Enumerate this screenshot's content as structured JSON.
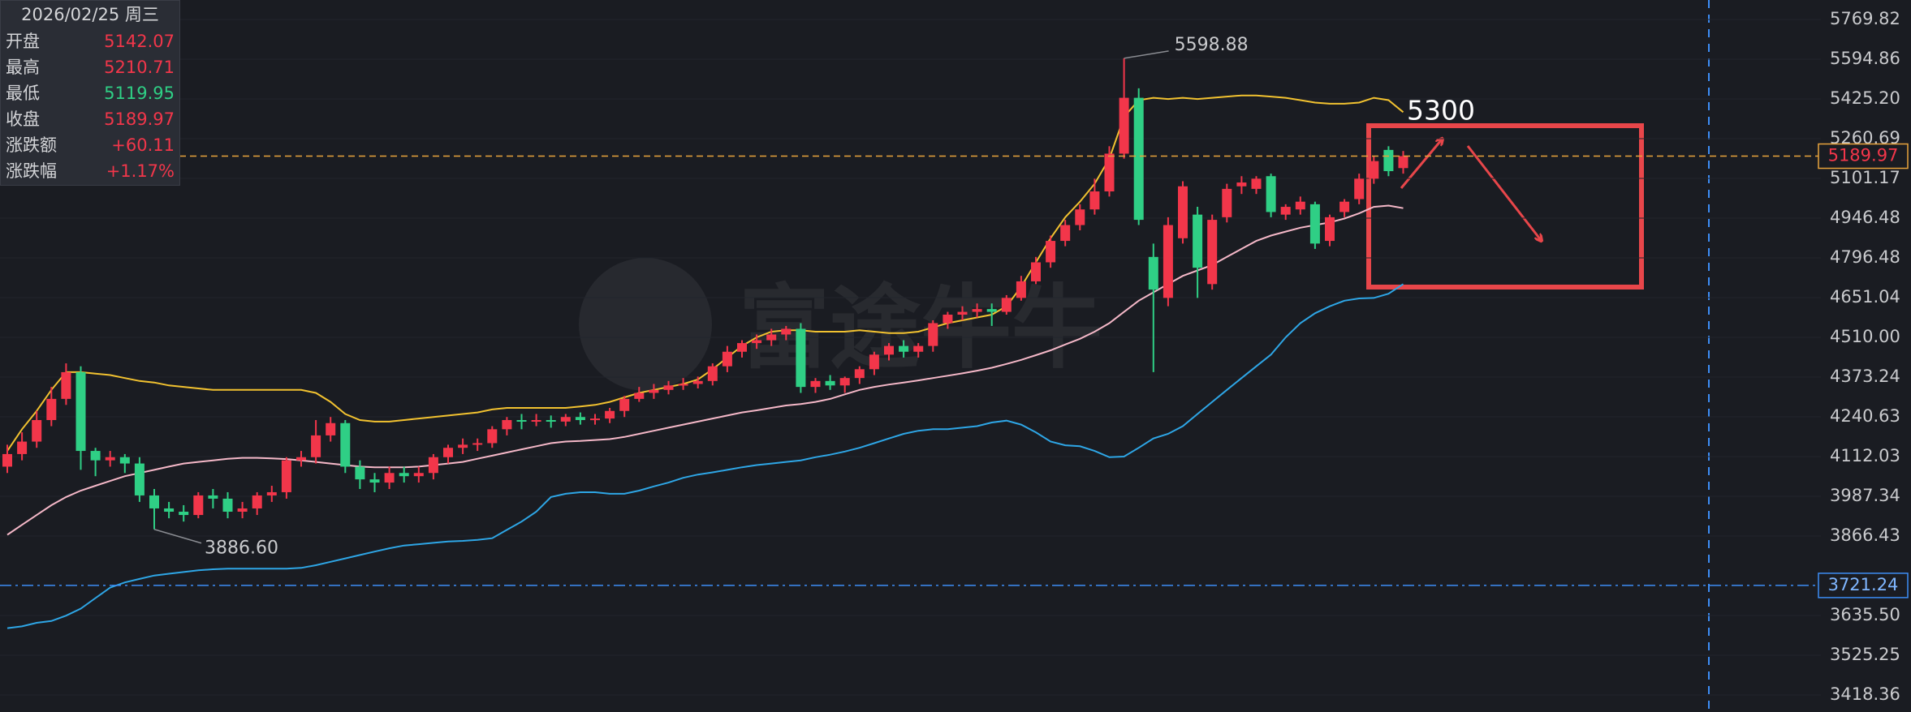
{
  "info_panel": {
    "date": "2026/02/25 周三",
    "rows": [
      {
        "label": "开盘",
        "value": "5142.07",
        "color": "#f2364a"
      },
      {
        "label": "最高",
        "value": "5210.71",
        "color": "#f2364a"
      },
      {
        "label": "最低",
        "value": "5119.95",
        "color": "#2fcf85"
      },
      {
        "label": "收盘",
        "value": "5189.97",
        "color": "#f2364a"
      },
      {
        "label": "涨跌额",
        "value": "+60.11",
        "color": "#f2364a"
      },
      {
        "label": "涨跌幅",
        "value": "+1.17%",
        "color": "#f2364a"
      }
    ]
  },
  "watermark": "富途牛牛",
  "chart_data": {
    "type": "candlestick",
    "categories": [
      null,
      null,
      null,
      null,
      null,
      null,
      null,
      null,
      null,
      null,
      null,
      null,
      null,
      null,
      null,
      null,
      null,
      null,
      null,
      null,
      null,
      null,
      null,
      null,
      null,
      null,
      null,
      null,
      null,
      null,
      null,
      null,
      null,
      null,
      null,
      null,
      null,
      null,
      null,
      null,
      null,
      null,
      null,
      null,
      null,
      null,
      null,
      null,
      null,
      null,
      null,
      null,
      null,
      null,
      null,
      null,
      null,
      null,
      null,
      null,
      null,
      null,
      null,
      null,
      null,
      null,
      null,
      null,
      null,
      null,
      null,
      null,
      null,
      null,
      null,
      null,
      null,
      null,
      null,
      null,
      null,
      null,
      null,
      null,
      null,
      null,
      null,
      null,
      null,
      null,
      null,
      null,
      null,
      null,
      null,
      null
    ],
    "open": [
      4080,
      4120,
      4160,
      4230,
      4300,
      4390,
      4130,
      4100,
      4110,
      4090,
      3990,
      3950,
      3940,
      3930,
      3990,
      3980,
      3940,
      3950,
      3990,
      4000,
      4100,
      4110,
      4180,
      4220,
      4080,
      4040,
      4030,
      4060,
      4050,
      4060,
      4110,
      4140,
      4150,
      4155,
      4200,
      4230,
      4225,
      4230,
      4225,
      4240,
      4230,
      4235,
      4260,
      4300,
      4320,
      4330,
      4345,
      4350,
      4360,
      4410,
      4460,
      4490,
      4500,
      4520,
      4540,
      4340,
      4360,
      4345,
      4370,
      4400,
      4450,
      4480,
      4460,
      4480,
      4560,
      4590,
      4600,
      4610,
      4600,
      4650,
      4710,
      4780,
      4860,
      4920,
      4980,
      5050,
      5200,
      5430,
      4800,
      4650,
      4870,
      4960,
      4700,
      4950,
      5070,
      5060,
      5110,
      4960,
      4980,
      5000,
      4860,
      4970,
      5020,
      5100,
      5215,
      5142.07
    ],
    "high": [
      4150,
      4190,
      4260,
      4340,
      4420,
      4410,
      4140,
      4130,
      4120,
      4110,
      4010,
      3970,
      3960,
      4000,
      4010,
      4000,
      3970,
      4000,
      4020,
      4110,
      4130,
      4230,
      4240,
      4230,
      4100,
      4060,
      4080,
      4080,
      4080,
      4120,
      4150,
      4170,
      4170,
      4210,
      4240,
      4250,
      4250,
      4245,
      4250,
      4255,
      4250,
      4270,
      4310,
      4340,
      4350,
      4360,
      4370,
      4375,
      4420,
      4480,
      4500,
      4520,
      4540,
      4550,
      4560,
      4370,
      4380,
      4375,
      4410,
      4460,
      4490,
      4500,
      4490,
      4570,
      4600,
      4620,
      4630,
      4630,
      4660,
      4730,
      4800,
      4880,
      4940,
      5000,
      5100,
      5230,
      5598.88,
      5470,
      4850,
      4950,
      5090,
      4990,
      4960,
      5080,
      5110,
      5110,
      5120,
      5000,
      5030,
      5010,
      4960,
      5020,
      5120,
      5190,
      5230,
      5210.71
    ],
    "low": [
      4060,
      4100,
      4140,
      4210,
      4280,
      4070,
      4050,
      4080,
      4060,
      3970,
      3886.6,
      3920,
      3910,
      3920,
      3950,
      3920,
      3920,
      3930,
      3970,
      3980,
      4080,
      4090,
      4160,
      4060,
      4010,
      4000,
      4010,
      4030,
      4030,
      4040,
      4090,
      4120,
      4130,
      4140,
      4180,
      4200,
      4210,
      4205,
      4210,
      4215,
      4215,
      4220,
      4240,
      4290,
      4300,
      4315,
      4330,
      4335,
      4345,
      4390,
      4440,
      4470,
      4480,
      4500,
      4320,
      4320,
      4330,
      4320,
      4350,
      4380,
      4430,
      4440,
      4440,
      4460,
      4540,
      4570,
      4580,
      4550,
      4590,
      4640,
      4700,
      4760,
      4840,
      4900,
      4960,
      5030,
      5180,
      4920,
      4390,
      4620,
      4850,
      4650,
      4680,
      4930,
      5040,
      5040,
      4950,
      4940,
      4960,
      4830,
      4840,
      4950,
      5000,
      5080,
      5110,
      5119.95
    ],
    "close": [
      4120,
      4160,
      4230,
      4300,
      4390,
      4130,
      4100,
      4110,
      4090,
      3990,
      3950,
      3940,
      3930,
      3990,
      3980,
      3940,
      3950,
      3990,
      4000,
      4100,
      4110,
      4180,
      4220,
      4080,
      4040,
      4030,
      4060,
      4050,
      4060,
      4110,
      4140,
      4150,
      4155,
      4200,
      4230,
      4225,
      4230,
      4225,
      4240,
      4230,
      4235,
      4260,
      4300,
      4320,
      4330,
      4345,
      4350,
      4360,
      4410,
      4460,
      4490,
      4500,
      4520,
      4540,
      4340,
      4360,
      4345,
      4370,
      4400,
      4450,
      4480,
      4460,
      4480,
      4560,
      4590,
      4600,
      4610,
      4600,
      4650,
      4710,
      4780,
      4860,
      4920,
      4980,
      5050,
      5200,
      5430,
      4940,
      4680,
      4920,
      5070,
      4760,
      4940,
      5060,
      5085,
      5100,
      4970,
      4990,
      5010,
      4850,
      4950,
      5010,
      5100,
      5170,
      5130,
      5189.97
    ],
    "up_color": "#f2364a",
    "down_color": "#2fcf85",
    "lines": [
      {
        "color": "#f2c230",
        "values": [
          4130,
          4200,
          4260,
          4330,
          4390,
          4390,
          4385,
          4380,
          4370,
          4360,
          4355,
          4345,
          4340,
          4335,
          4330,
          4330,
          4330,
          4330,
          4330,
          4330,
          4330,
          4320,
          4290,
          4250,
          4230,
          4225,
          4225,
          4230,
          4235,
          4240,
          4245,
          4250,
          4255,
          4265,
          4270,
          4270,
          4270,
          4270,
          4270,
          4275,
          4280,
          4290,
          4305,
          4320,
          4330,
          4340,
          4350,
          4365,
          4400,
          4440,
          4480,
          4510,
          4530,
          4535,
          4535,
          4530,
          4530,
          4530,
          4535,
          4530,
          4525,
          4525,
          4530,
          4545,
          4560,
          4570,
          4580,
          4590,
          4620,
          4690,
          4780,
          4870,
          4950,
          5010,
          5080,
          5180,
          5350,
          5420,
          5430,
          5425,
          5430,
          5425,
          5430,
          5435,
          5440,
          5440,
          5435,
          5430,
          5420,
          5410,
          5405,
          5405,
          5410,
          5430,
          5420,
          5370
        ]
      },
      {
        "color": "#f5b8c8",
        "values": [
          3870,
          3900,
          3930,
          3960,
          3985,
          4005,
          4020,
          4035,
          4050,
          4060,
          4070,
          4080,
          4090,
          4095,
          4100,
          4105,
          4108,
          4108,
          4106,
          4104,
          4100,
          4095,
          4090,
          4085,
          4080,
          4078,
          4078,
          4078,
          4080,
          4085,
          4090,
          4095,
          4105,
          4115,
          4125,
          4135,
          4145,
          4155,
          4160,
          4162,
          4165,
          4168,
          4175,
          4185,
          4195,
          4205,
          4215,
          4225,
          4235,
          4245,
          4255,
          4262,
          4270,
          4278,
          4283,
          4290,
          4300,
          4315,
          4330,
          4340,
          4348,
          4355,
          4362,
          4370,
          4378,
          4386,
          4395,
          4405,
          4418,
          4432,
          4448,
          4465,
          4485,
          4505,
          4530,
          4560,
          4600,
          4640,
          4670,
          4700,
          4730,
          4750,
          4770,
          4800,
          4830,
          4860,
          4880,
          4895,
          4910,
          4920,
          4930,
          4945,
          4965,
          4990,
          4995,
          4985
        ]
      },
      {
        "color": "#2ea6e6",
        "values": [
          3600,
          3605,
          3615,
          3620,
          3635,
          3655,
          3685,
          3715,
          3730,
          3740,
          3750,
          3755,
          3760,
          3765,
          3768,
          3770,
          3770,
          3770,
          3770,
          3770,
          3772,
          3780,
          3790,
          3800,
          3810,
          3820,
          3830,
          3838,
          3842,
          3846,
          3850,
          3852,
          3855,
          3860,
          3885,
          3910,
          3940,
          3985,
          3995,
          4000,
          4000,
          3995,
          3995,
          4005,
          4018,
          4030,
          4045,
          4055,
          4062,
          4070,
          4078,
          4085,
          4090,
          4095,
          4100,
          4110,
          4118,
          4128,
          4140,
          4155,
          4170,
          4185,
          4195,
          4200,
          4200,
          4205,
          4210,
          4222,
          4228,
          4215,
          4190,
          4160,
          4148,
          4145,
          4130,
          4110,
          4112,
          4140,
          4170,
          4185,
          4210,
          4250,
          4290,
          4330,
          4370,
          4410,
          4450,
          4510,
          4560,
          4595,
          4620,
          4640,
          4648,
          4650,
          4665,
          4700
        ]
      }
    ],
    "ylim": [
      3418.36,
      5769.82
    ],
    "log_scale": true,
    "grid": true,
    "yticks": [
      5769.82,
      5594.86,
      {
        "value": 5425.2,
        "label": "5425.20"
      },
      5260.69,
      5101.17,
      4946.48,
      4796.48,
      4651.04,
      {
        "value": 4510,
        "label": "4510.00"
      },
      4373.24,
      4240.63,
      4112.03,
      3987.34,
      3866.43,
      {
        "value": 3635.5,
        "label": "3635.50"
      },
      3525.25,
      3418.36
    ],
    "annotations": [
      {
        "value": 5598.88,
        "label": "5598.88"
      },
      {
        "value": 3886.6,
        "label": "3886.60"
      }
    ],
    "target": 5300,
    "last_price": 5189.97,
    "last_price_color": "#e8a33c",
    "reference_line": 3721.24,
    "reference_color": "#3d8df5"
  }
}
